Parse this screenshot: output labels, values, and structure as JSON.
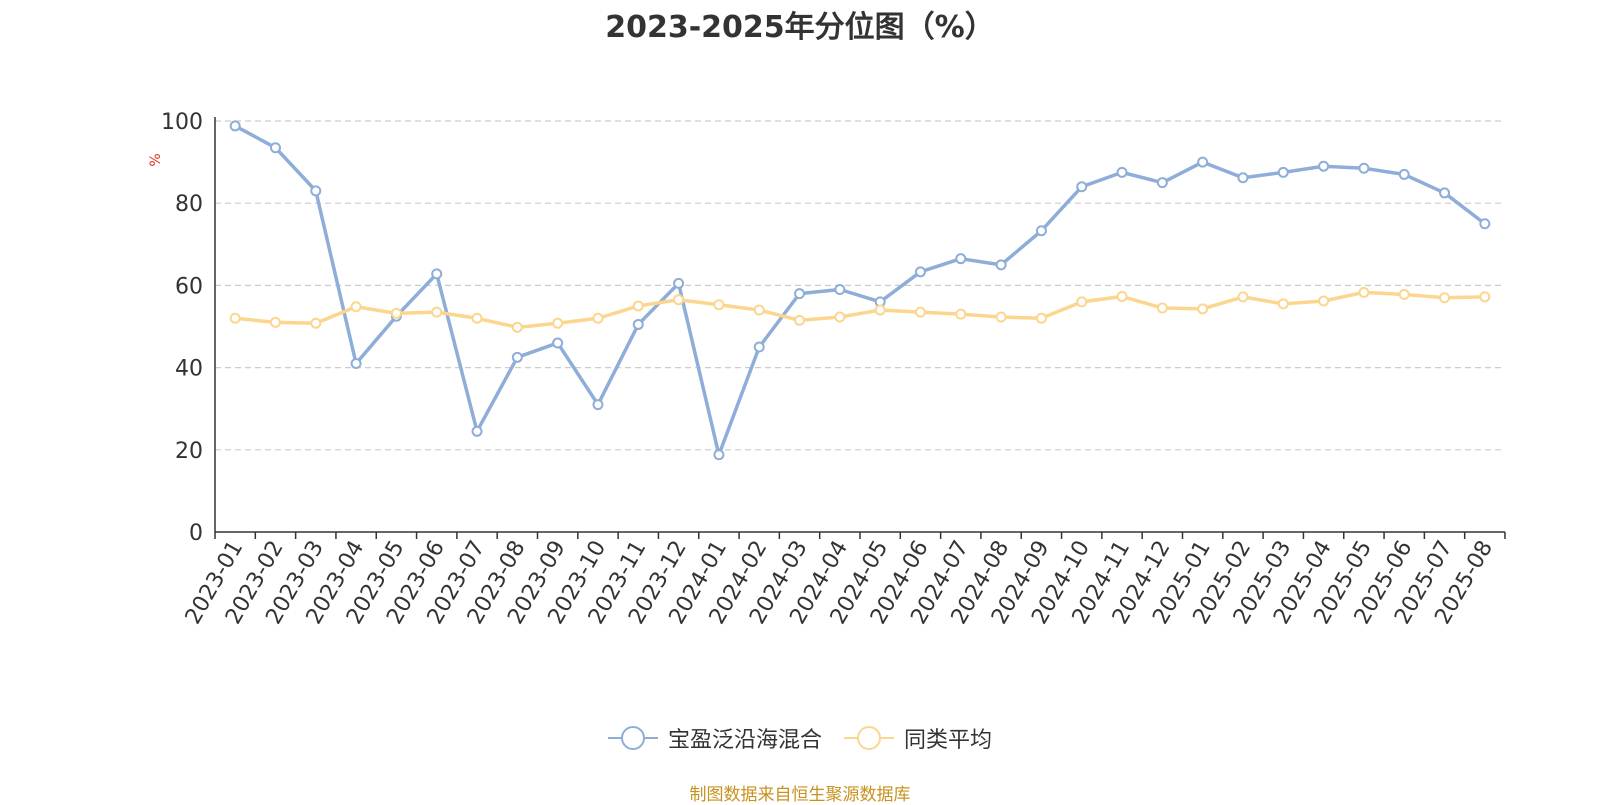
{
  "chart_data": {
    "type": "line",
    "title": "2023-2025年分位图（%）",
    "ylabel": "%",
    "xlabel": "",
    "ylim": [
      0,
      100
    ],
    "yticks": [
      0,
      20,
      40,
      60,
      80,
      100
    ],
    "grid": true,
    "legend_position": "bottom",
    "categories": [
      "2023-01",
      "2023-02",
      "2023-03",
      "2023-04",
      "2023-05",
      "2023-06",
      "2023-07",
      "2023-08",
      "2023-09",
      "2023-10",
      "2023-11",
      "2023-12",
      "2024-01",
      "2024-02",
      "2024-03",
      "2024-04",
      "2024-05",
      "2024-06",
      "2024-07",
      "2024-08",
      "2024-09",
      "2024-10",
      "2024-11",
      "2024-12",
      "2025-01",
      "2025-02",
      "2025-03",
      "2025-04",
      "2025-05",
      "2025-06",
      "2025-07",
      "2025-08"
    ],
    "series": [
      {
        "name": "宝盈泛沿海混合",
        "color": "#8eadd8",
        "values": [
          98.8,
          93.5,
          83.0,
          41.0,
          52.5,
          62.8,
          24.5,
          42.5,
          46.0,
          31.0,
          50.5,
          60.5,
          18.8,
          45.0,
          58.0,
          59.0,
          56.0,
          63.3,
          66.5,
          65.0,
          73.3,
          84.0,
          87.5,
          85.0,
          90.0,
          86.2,
          87.5,
          89.0,
          88.5,
          87.0,
          82.5,
          75.0
        ]
      },
      {
        "name": "同类平均",
        "color": "#fbd68e",
        "values": [
          52.0,
          51.0,
          50.8,
          54.8,
          53.2,
          53.5,
          52.0,
          49.8,
          50.8,
          52.0,
          55.0,
          56.5,
          55.3,
          54.0,
          51.5,
          52.3,
          54.0,
          53.5,
          53.0,
          52.3,
          52.0,
          56.0,
          57.3,
          54.5,
          54.3,
          57.2,
          55.5,
          56.2,
          58.3,
          57.8,
          57.0,
          57.2
        ]
      }
    ]
  },
  "footer": {
    "source": "制图数据来自恒生聚源数据库"
  }
}
